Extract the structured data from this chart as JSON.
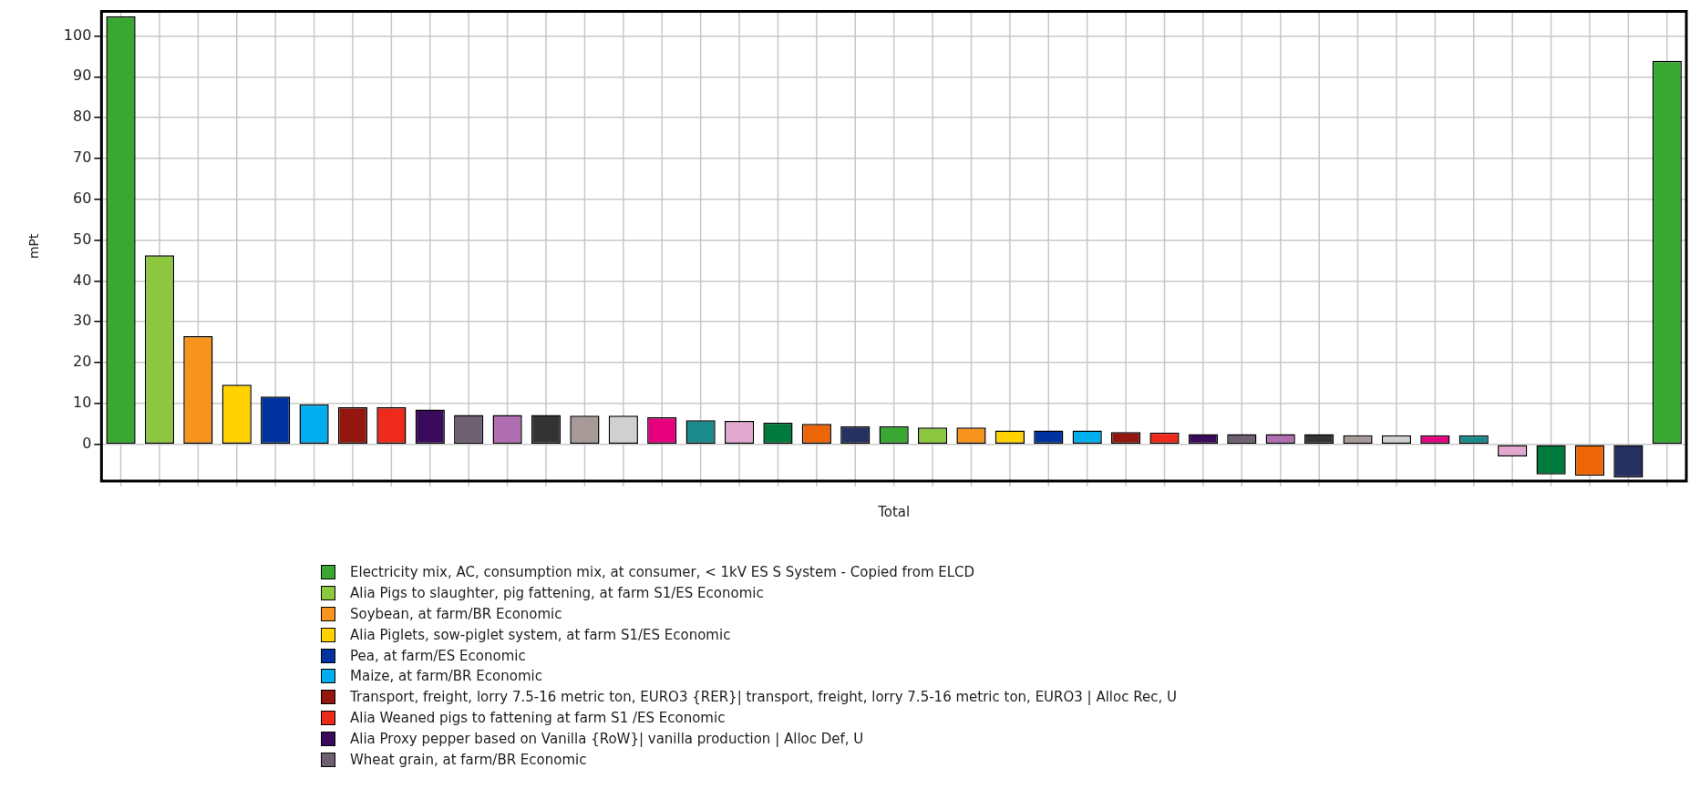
{
  "chart_data": {
    "type": "bar",
    "ylabel": "mPt",
    "categories": [
      "Total"
    ],
    "ylim": [
      -9,
      106
    ],
    "yticks": [
      0,
      10,
      20,
      30,
      40,
      50,
      60,
      70,
      80,
      90,
      100
    ],
    "grid": true,
    "legend": "bottom",
    "series": [
      {
        "name": "Electricity mix, AC, consumption mix, at consumer, < 1kV ES S System - Copied from ELCD",
        "color": "#38a832",
        "values": [
          104.8
        ]
      },
      {
        "name": "Alia Pigs to slaughter, pig fattening, at farm S1/ES Economic",
        "color": "#8dc63f",
        "values": [
          46.3
        ]
      },
      {
        "name": "Soybean, at farm/BR Economic",
        "color": "#f7941d",
        "values": [
          26.5
        ]
      },
      {
        "name": "Alia Piglets, sow-piglet system, at farm S1/ES Economic",
        "color": "#ffd200",
        "values": [
          14.6
        ]
      },
      {
        "name": "Pea, at farm/ES Economic",
        "color": "#0033a0",
        "values": [
          11.7
        ]
      },
      {
        "name": "Maize, at farm/BR Economic",
        "color": "#00aeef",
        "values": [
          9.8
        ]
      },
      {
        "name": "Transport, freight, lorry 7.5-16 metric ton, EURO3 {RER}| transport, freight, lorry 7.5-16 metric ton, EURO3 | Alloc Rec, U",
        "color": "#93160f",
        "values": [
          9.1
        ]
      },
      {
        "name": "Alia Weaned pigs to fattening at farm S1 /ES Economic",
        "color": "#ee2a1c",
        "values": [
          9.1
        ]
      },
      {
        "name": "Alia Proxy pepper based on Vanilla {RoW}| vanilla production | Alloc Def, U",
        "color": "#3a0b5c",
        "values": [
          8.5
        ]
      },
      {
        "name": "Wheat grain, at farm/BR Economic",
        "color": "#6e6070",
        "values": [
          7.2
        ]
      },
      {
        "color": "#b06fb0",
        "values": [
          7.2
        ]
      },
      {
        "color": "#333333",
        "values": [
          7.2
        ]
      },
      {
        "color": "#a89a98",
        "values": [
          7.0
        ]
      },
      {
        "color": "#d0d0d0",
        "values": [
          7.0
        ]
      },
      {
        "color": "#e6007e",
        "values": [
          6.6
        ]
      },
      {
        "color": "#1a8a8a",
        "values": [
          5.9
        ]
      },
      {
        "color": "#e3a8cf",
        "values": [
          5.7
        ]
      },
      {
        "color": "#007a3d",
        "values": [
          5.3
        ]
      },
      {
        "color": "#ec6608",
        "values": [
          5.0
        ]
      },
      {
        "color": "#263061",
        "values": [
          4.4
        ]
      },
      {
        "color": "#38a832",
        "values": [
          4.4
        ]
      },
      {
        "color": "#8dc63f",
        "values": [
          4.1
        ]
      },
      {
        "color": "#f7941d",
        "values": [
          4.1
        ]
      },
      {
        "color": "#ffd200",
        "values": [
          3.4
        ]
      },
      {
        "color": "#0033a0",
        "values": [
          3.4
        ]
      },
      {
        "color": "#00aeef",
        "values": [
          3.4
        ]
      },
      {
        "color": "#93160f",
        "values": [
          3.0
        ]
      },
      {
        "color": "#ee2a1c",
        "values": [
          2.9
        ]
      },
      {
        "color": "#3a0b5c",
        "values": [
          2.5
        ]
      },
      {
        "color": "#6e6070",
        "values": [
          2.5
        ]
      },
      {
        "color": "#b06fb0",
        "values": [
          2.5
        ]
      },
      {
        "color": "#333333",
        "values": [
          2.5
        ]
      },
      {
        "color": "#a89a98",
        "values": [
          2.2
        ]
      },
      {
        "color": "#d0d0d0",
        "values": [
          2.2
        ]
      },
      {
        "color": "#e6007e",
        "values": [
          2.2
        ]
      },
      {
        "color": "#1a8a8a",
        "values": [
          2.2
        ]
      },
      {
        "color": "#e3a8cf",
        "values": [
          -3.0
        ]
      },
      {
        "color": "#007a3d",
        "values": [
          -7.4
        ]
      },
      {
        "color": "#ec6608",
        "values": [
          -7.7
        ]
      },
      {
        "color": "#263061",
        "values": [
          -8.1
        ]
      },
      {
        "color": "#38a832",
        "values": [
          93.9
        ]
      }
    ]
  }
}
